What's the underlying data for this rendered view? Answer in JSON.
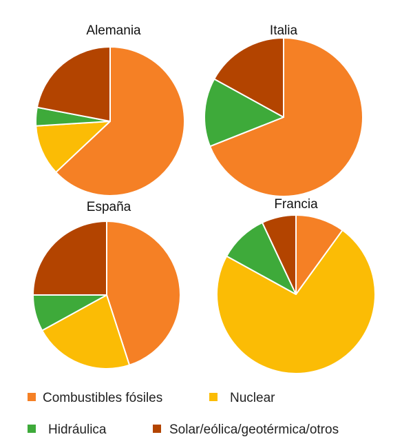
{
  "chart_data": [
    {
      "type": "pie",
      "title": "Alemania",
      "categories": [
        "Combustibles fósiles",
        "Nuclear",
        "Hidráulica",
        "Solar/eólica/geotérmica/otros"
      ],
      "values": [
        63,
        11,
        4,
        22
      ]
    },
    {
      "type": "pie",
      "title": "Italia",
      "categories": [
        "Combustibles fósiles",
        "Nuclear",
        "Hidráulica",
        "Solar/eólica/geotérmica/otros"
      ],
      "values": [
        69,
        0,
        14,
        17
      ]
    },
    {
      "type": "pie",
      "title": "España",
      "categories": [
        "Combustibles fósiles",
        "Nuclear",
        "Hidráulica",
        "Solar/eólica/geotérmica/otros"
      ],
      "values": [
        45,
        22,
        8,
        25
      ]
    },
    {
      "type": "pie",
      "title": "Francia",
      "categories": [
        "Combustibles fósiles",
        "Nuclear",
        "Hidráulica",
        "Solar/eólica/geotérmica/otros"
      ],
      "values": [
        10,
        73,
        10,
        7
      ]
    }
  ],
  "legend": [
    {
      "label": "Combustibles fósiles",
      "color": "#F58025"
    },
    {
      "label": "Nuclear",
      "color": "#FBBC05"
    },
    {
      "label": "Hidráulica",
      "color": "#3EAA3A"
    },
    {
      "label": "Solar/eólica/geotérmica/otros",
      "color": "#B34400"
    }
  ],
  "colors": [
    "#F58025",
    "#FBBC05",
    "#3EAA3A",
    "#B34400"
  ]
}
